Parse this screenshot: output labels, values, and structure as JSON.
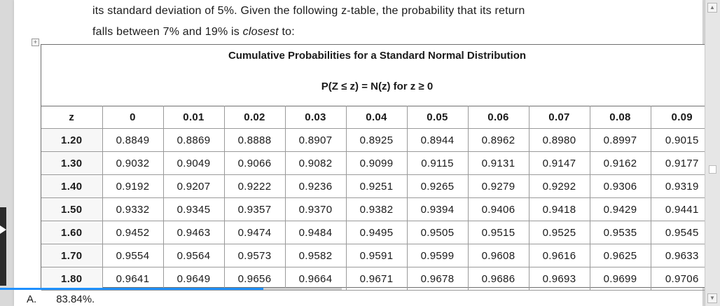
{
  "question": {
    "line1": "its standard deviation of 5%. Given the following z-table, the probability that its return",
    "line2_prefix": "falls between 7% and 19% is ",
    "line2_emphasis": "closest",
    "line2_suffix": " to:"
  },
  "ztable": {
    "title": "Cumulative Probabilities for a Standard Normal Distribution",
    "subtitle": "P(Z ≤ z) = N(z) for z ≥ 0",
    "columns": [
      "z",
      "0",
      "0.01",
      "0.02",
      "0.03",
      "0.04",
      "0.05",
      "0.06",
      "0.07",
      "0.08",
      "0.09"
    ],
    "rows": [
      {
        "z": "1.20",
        "values": [
          "0.8849",
          "0.8869",
          "0.8888",
          "0.8907",
          "0.8925",
          "0.8944",
          "0.8962",
          "0.8980",
          "0.8997",
          "0.9015"
        ]
      },
      {
        "z": "1.30",
        "values": [
          "0.9032",
          "0.9049",
          "0.9066",
          "0.9082",
          "0.9099",
          "0.9115",
          "0.9131",
          "0.9147",
          "0.9162",
          "0.9177"
        ]
      },
      {
        "z": "1.40",
        "values": [
          "0.9192",
          "0.9207",
          "0.9222",
          "0.9236",
          "0.9251",
          "0.9265",
          "0.9279",
          "0.9292",
          "0.9306",
          "0.9319"
        ]
      },
      {
        "z": "1.50",
        "values": [
          "0.9332",
          "0.9345",
          "0.9357",
          "0.9370",
          "0.9382",
          "0.9394",
          "0.9406",
          "0.9418",
          "0.9429",
          "0.9441"
        ]
      },
      {
        "z": "1.60",
        "values": [
          "0.9452",
          "0.9463",
          "0.9474",
          "0.9484",
          "0.9495",
          "0.9505",
          "0.9515",
          "0.9525",
          "0.9535",
          "0.9545"
        ]
      },
      {
        "z": "1.70",
        "values": [
          "0.9554",
          "0.9564",
          "0.9573",
          "0.9582",
          "0.9591",
          "0.9599",
          "0.9608",
          "0.9616",
          "0.9625",
          "0.9633"
        ]
      },
      {
        "z": "1.80",
        "values": [
          "0.9641",
          "0.9649",
          "0.9656",
          "0.9664",
          "0.9671",
          "0.9678",
          "0.9686",
          "0.9693",
          "0.9699",
          "0.9706"
        ]
      }
    ]
  },
  "answers": {
    "a_letter": "A.",
    "a_text": "83.84%."
  },
  "player": {
    "progress_fraction": 0.77,
    "accent_color": "#1e90ff"
  },
  "icons": {
    "table_move": "move-handle-icon",
    "play": "play-icon",
    "scroll_up": "chevron-up-icon",
    "scroll_down": "chevron-down-icon"
  }
}
